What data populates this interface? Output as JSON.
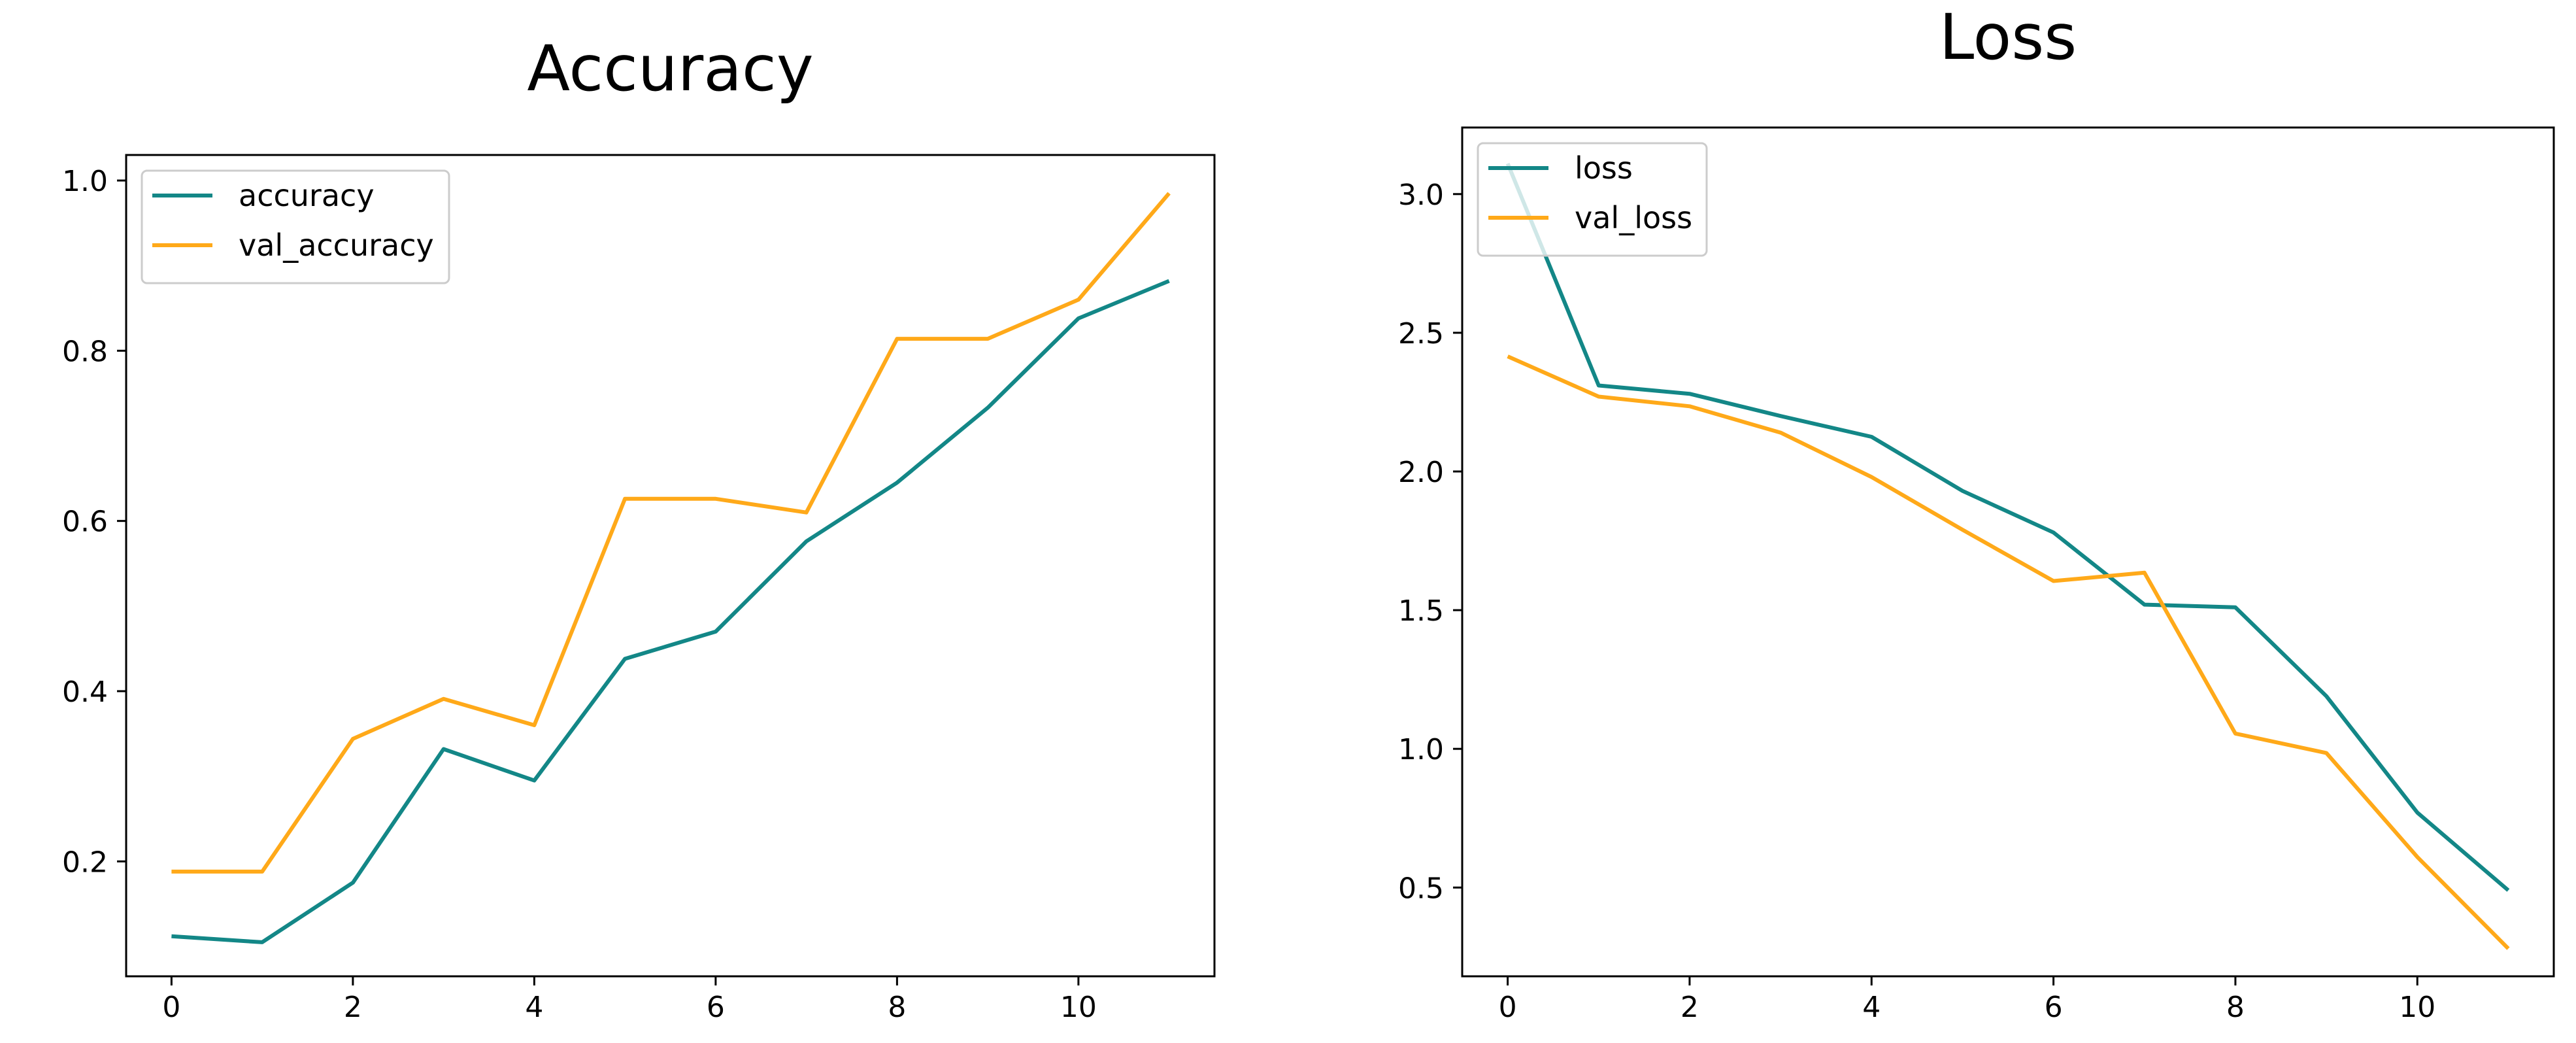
{
  "chart_data": [
    {
      "type": "line",
      "title": "Accuracy",
      "xlabel": "",
      "ylabel": "",
      "x": [
        0,
        1,
        2,
        3,
        4,
        5,
        6,
        7,
        8,
        9,
        10,
        11
      ],
      "xlim": [
        -0.5,
        11.5
      ],
      "ylim": [
        0.065,
        1.03
      ],
      "xticks": [
        0,
        2,
        4,
        6,
        8,
        10
      ],
      "yticks": [
        0.2,
        0.4,
        0.6,
        0.8,
        1.0
      ],
      "xtick_labels": [
        "0",
        "2",
        "4",
        "6",
        "8",
        "10"
      ],
      "ytick_labels": [
        "0.2",
        "0.4",
        "0.6",
        "0.8",
        "1.0"
      ],
      "grid": false,
      "legend_position": "upper-left",
      "series": [
        {
          "name": "accuracy",
          "color": "#138787",
          "values": [
            0.112,
            0.105,
            0.175,
            0.332,
            0.295,
            0.438,
            0.47,
            0.576,
            0.645,
            0.733,
            0.838,
            0.882
          ]
        },
        {
          "name": "val_accuracy",
          "color": "#ffa919",
          "values": [
            0.188,
            0.188,
            0.344,
            0.391,
            0.36,
            0.626,
            0.626,
            0.61,
            0.814,
            0.814,
            0.86,
            0.985
          ]
        }
      ]
    },
    {
      "type": "line",
      "title": "Loss",
      "xlabel": "",
      "ylabel": "",
      "x": [
        0,
        1,
        2,
        3,
        4,
        5,
        6,
        7,
        8,
        9,
        10,
        11
      ],
      "xlim": [
        -0.5,
        11.5
      ],
      "ylim": [
        0.18,
        3.24
      ],
      "xticks": [
        0,
        2,
        4,
        6,
        8,
        10
      ],
      "yticks": [
        0.5,
        1.0,
        1.5,
        2.0,
        2.5,
        3.0
      ],
      "xtick_labels": [
        "0",
        "2",
        "4",
        "6",
        "8",
        "10"
      ],
      "ytick_labels": [
        "0.5",
        "1.0",
        "1.5",
        "2.0",
        "2.5",
        "3.0"
      ],
      "grid": false,
      "legend_position": "upper-left",
      "series": [
        {
          "name": "loss",
          "color": "#138787",
          "values": [
            3.11,
            2.31,
            2.28,
            2.2,
            2.125,
            1.93,
            1.78,
            1.52,
            1.51,
            1.19,
            0.77,
            0.49
          ]
        },
        {
          "name": "val_loss",
          "color": "#ffa919",
          "values": [
            2.415,
            2.27,
            2.235,
            2.14,
            1.98,
            1.79,
            1.605,
            1.635,
            1.055,
            0.985,
            0.61,
            0.28
          ]
        }
      ]
    }
  ]
}
